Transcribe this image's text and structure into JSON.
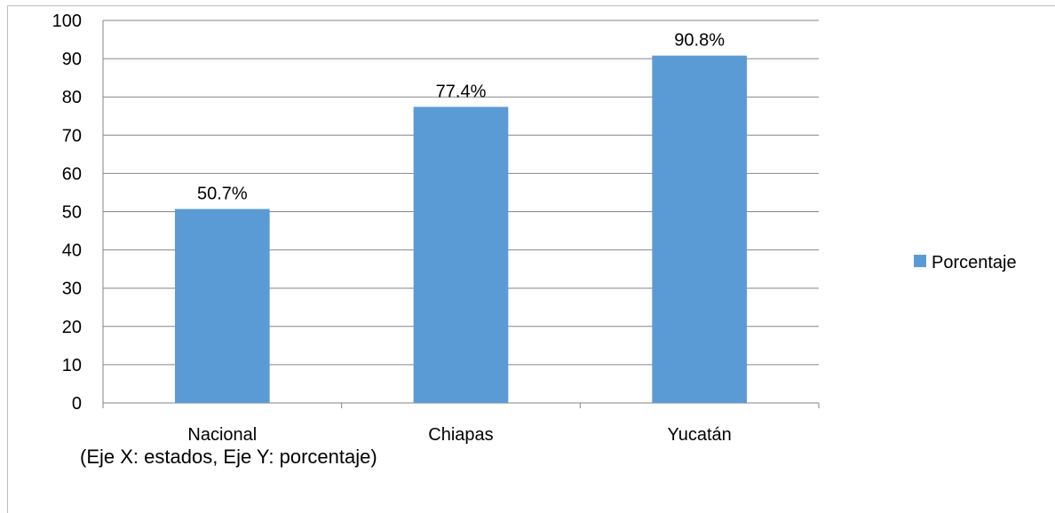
{
  "chart_data": {
    "type": "bar",
    "categories": [
      "Nacional",
      "Chiapas",
      "Yucatán"
    ],
    "series": [
      {
        "name": "Porcentaje",
        "values": [
          50.7,
          77.4,
          90.8
        ],
        "color": "#5b9bd5",
        "data_labels": [
          "50.7%",
          "77.4%",
          "90.8%"
        ]
      }
    ],
    "ylim": [
      0,
      100
    ],
    "yticks": [
      0,
      10,
      20,
      30,
      40,
      50,
      60,
      70,
      80,
      90,
      100
    ],
    "grid": true,
    "legend": "right",
    "annotation": "(Eje X: estados, Eje Y: porcentaje)"
  }
}
